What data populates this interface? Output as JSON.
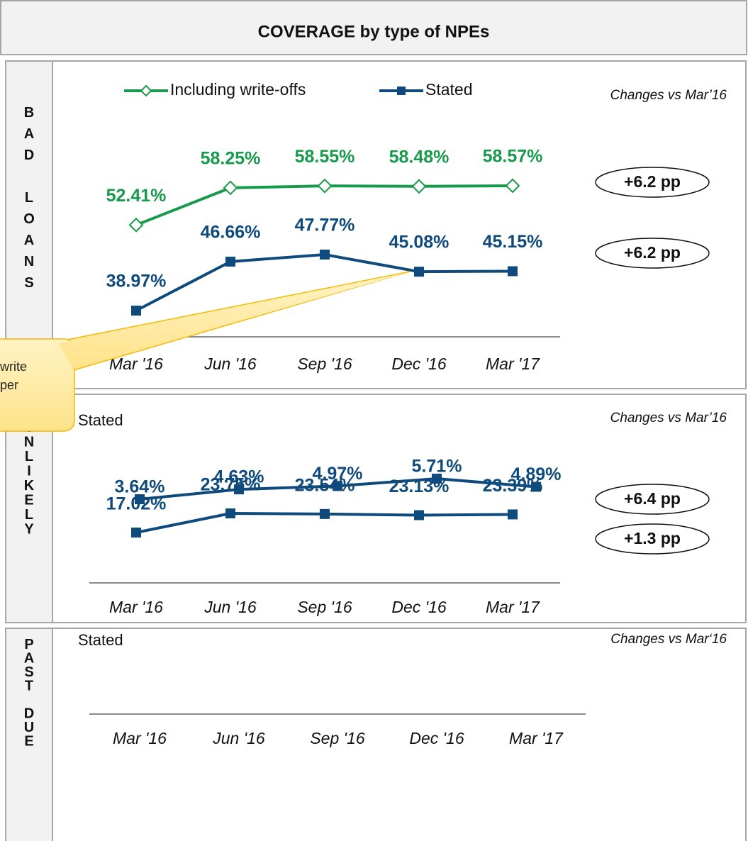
{
  "title": "COVERAGE by type of NPEs",
  "side_labels": [
    "BAD LOANS",
    "UNLIKELY",
    "PAST DUE"
  ],
  "callout": {
    "lines": [
      "write",
      "per"
    ]
  },
  "chart_data": [
    {
      "type": "line",
      "legend": true,
      "note": "Changes vs Mar’16",
      "categories": [
        "Mar '16",
        "Jun '16",
        "Sep '16",
        "Dec '16",
        "Mar '17"
      ],
      "series": [
        {
          "name": "Including write-offs",
          "color": "#179a4b",
          "marker": "diamond",
          "values": [
            52.41,
            58.25,
            58.55,
            58.48,
            58.57
          ],
          "value_labels": [
            "52.41%",
            "58.25%",
            "58.55%",
            "58.48%",
            "58.57%"
          ]
        },
        {
          "name": "Stated",
          "color": "#0f4a7c",
          "marker": "square",
          "values": [
            38.97,
            46.66,
            47.77,
            45.08,
            45.15
          ],
          "value_labels": [
            "38.97%",
            "46.66%",
            "47.77%",
            "45.08%",
            "45.15%"
          ]
        }
      ],
      "changes": [
        6.2,
        6.2
      ],
      "change_labels": [
        "+6.2 pp",
        "+6.2 pp"
      ]
    },
    {
      "type": "line",
      "legend": false,
      "note": "Changes vs Mar’16",
      "categories": [
        "Mar '16",
        "Jun '16",
        "Sep '16",
        "Dec '16",
        "Mar '17"
      ],
      "series": [
        {
          "name": "Stated",
          "color": "#0f4a7c",
          "marker": "square",
          "values": [
            17.02,
            23.75,
            23.54,
            23.13,
            23.39
          ],
          "value_labels": [
            "17.02%",
            "23.75%",
            "23.54%",
            "23.13%",
            "23.39%"
          ]
        }
      ],
      "changes": [
        6.4
      ],
      "change_labels": [
        "+6.4 pp"
      ]
    },
    {
      "type": "line",
      "legend": false,
      "note": "Changes vs Mar‘16",
      "categories": [
        "Mar '16",
        "Jun '16",
        "Sep '16",
        "Dec '16",
        "Mar '17"
      ],
      "series": [
        {
          "name": "Stated",
          "color": "#0f4a7c",
          "marker": "square",
          "values": [
            3.64,
            4.63,
            4.97,
            5.71,
            4.89
          ],
          "value_labels": [
            "3.64%",
            "4.63%",
            "4.97%",
            "5.71%",
            "4.89%"
          ]
        }
      ],
      "changes": [
        1.3
      ],
      "change_labels": [
        "+1.3 pp"
      ]
    }
  ]
}
